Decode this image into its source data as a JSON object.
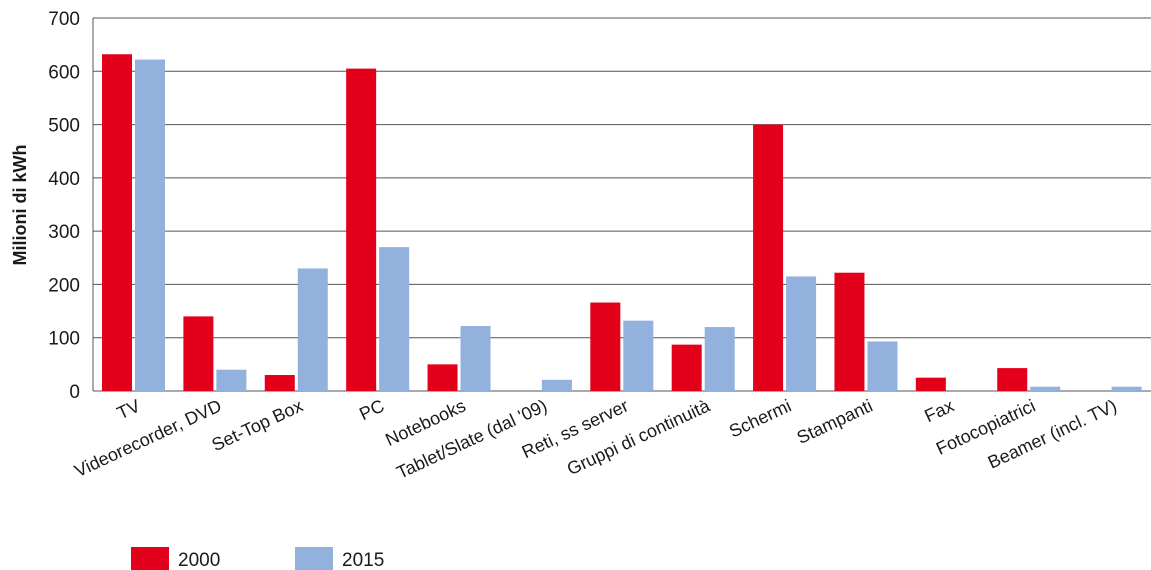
{
  "chart_data": {
    "type": "bar",
    "categories": [
      "TV",
      "Videorecorder, DVD",
      "Set-Top Box",
      "PC",
      "Notebooks",
      "Tablet/Slate (dal '09)",
      "Reti, ss server",
      "Gruppi di continuità",
      "Schermi",
      "Stampanti",
      "Fax",
      "Fotocopiatrici",
      "Beamer (incl. TV)"
    ],
    "series": [
      {
        "name": "2000",
        "color": "#e3001b",
        "values": [
          632,
          140,
          30,
          605,
          50,
          0,
          166,
          87,
          500,
          222,
          25,
          43,
          0
        ]
      },
      {
        "name": "2015",
        "color": "#92b1dd",
        "values": [
          622,
          40,
          230,
          270,
          122,
          21,
          132,
          120,
          215,
          93,
          0,
          8,
          8
        ]
      }
    ],
    "ylabel": "Milioni di kWh",
    "xlabel": "",
    "ylim": [
      0,
      700
    ],
    "yticks": [
      0,
      100,
      200,
      300,
      400,
      500,
      600,
      700
    ],
    "grid": true,
    "legend_position": "bottom-left"
  }
}
